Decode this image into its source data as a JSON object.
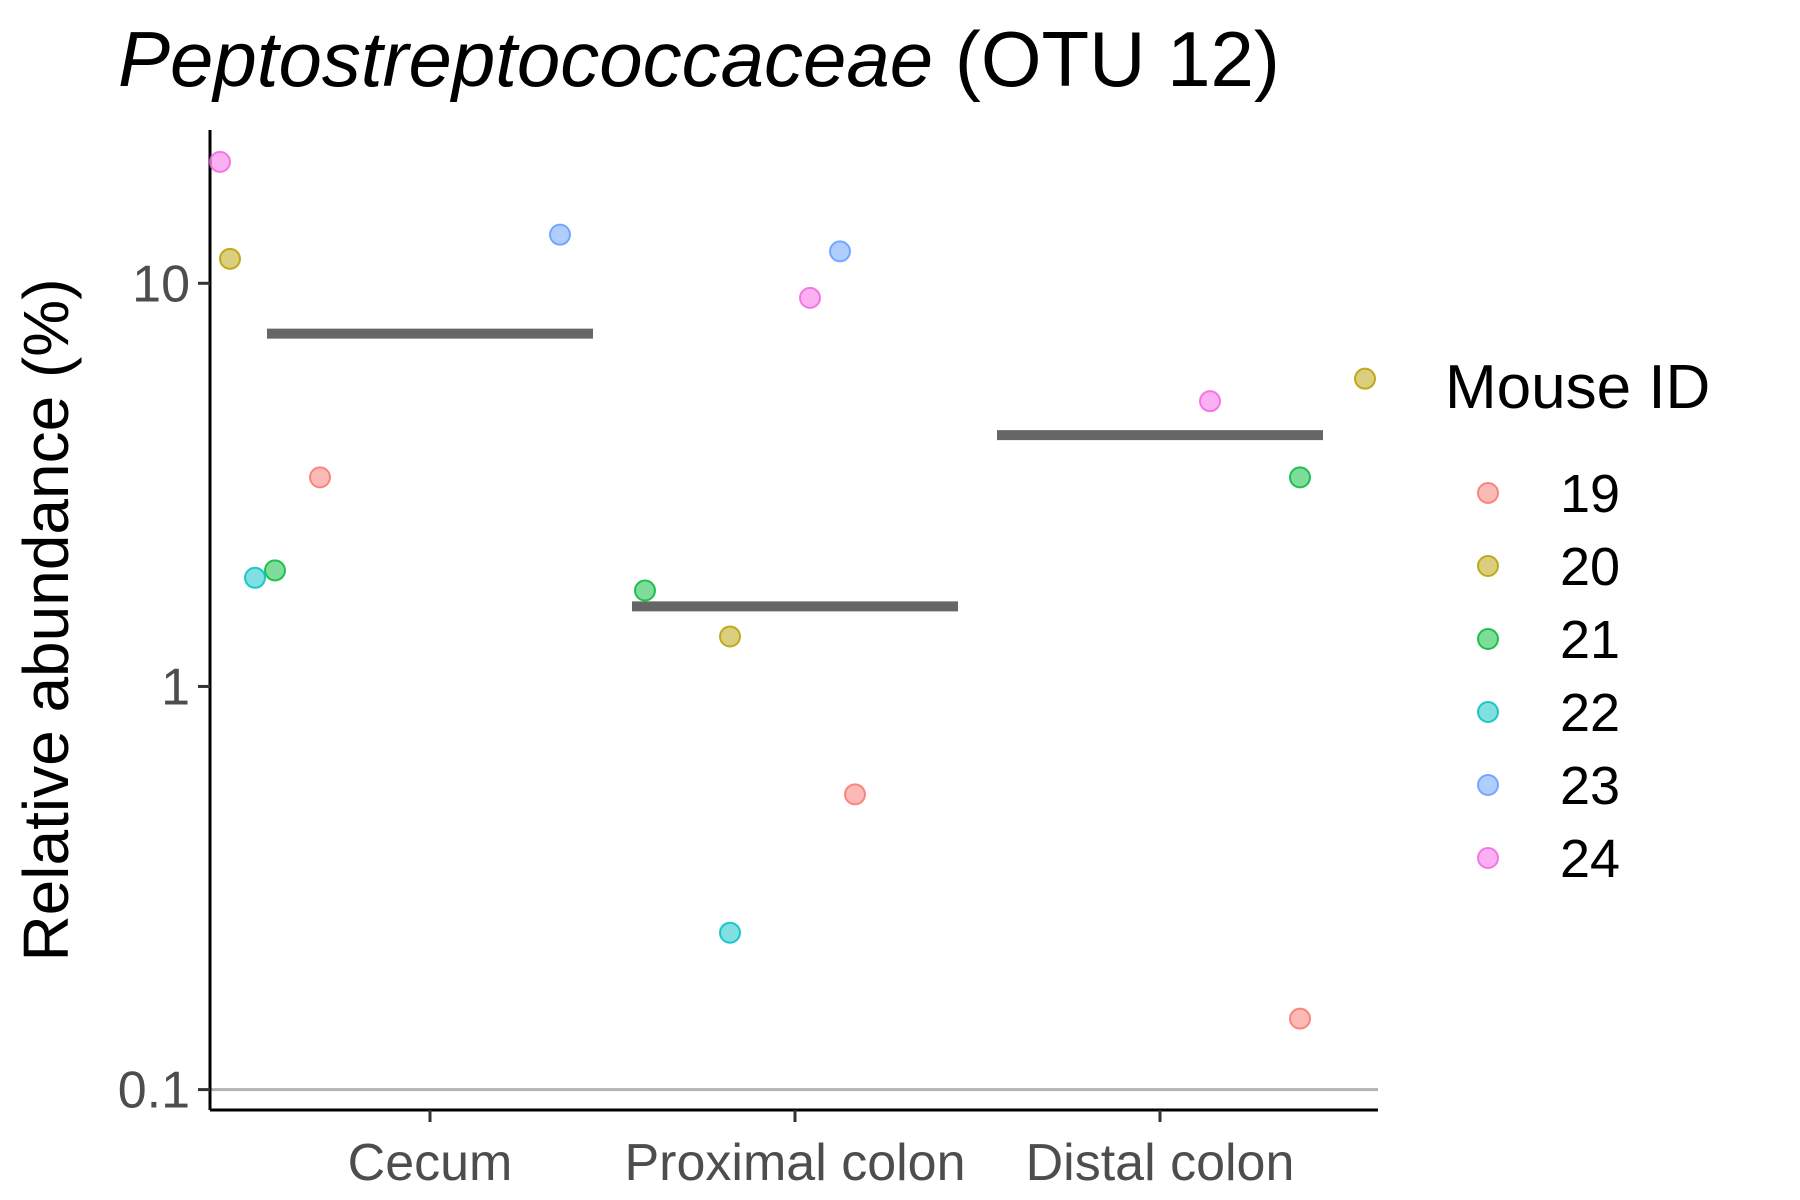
{
  "chart_data": {
    "type": "scatter",
    "title_italic": "Peptostreptococcaceae",
    "title_rest": " (OTU 12)",
    "xlabel": "",
    "ylabel": "Relative abundance (%)",
    "y_scale": "log10",
    "ylim": [
      0.089,
      24
    ],
    "y_ticks": [
      0.1,
      1,
      10
    ],
    "y_tick_labels": [
      "0.1",
      "1",
      "10"
    ],
    "reference_line": 0.1,
    "categories": [
      "Cecum",
      "Proximal colon",
      "Distal colon"
    ],
    "legend": {
      "title": "Mouse ID",
      "placement": "right",
      "items": [
        {
          "label": "19",
          "color": "#F8766D"
        },
        {
          "label": "20",
          "color": "#B79F00"
        },
        {
          "label": "21",
          "color": "#00BA38"
        },
        {
          "label": "22",
          "color": "#00BFC4"
        },
        {
          "label": "23",
          "color": "#619CFF"
        },
        {
          "label": "24",
          "color": "#F564E3"
        }
      ]
    },
    "series": [
      {
        "name": "19",
        "values": [
          3.3,
          0.54,
          0.15
        ]
      },
      {
        "name": "20",
        "values": [
          11.5,
          1.33,
          5.8
        ]
      },
      {
        "name": "21",
        "values": [
          1.94,
          1.73,
          3.3
        ]
      },
      {
        "name": "22",
        "values": [
          1.86,
          0.245,
          null
        ]
      },
      {
        "name": "23",
        "values": [
          13.2,
          12.0,
          null
        ]
      },
      {
        "name": "24",
        "values": [
          20.0,
          9.2,
          5.1
        ]
      }
    ],
    "means": [
      7.5,
      1.58,
      4.2
    ],
    "grid": false
  }
}
